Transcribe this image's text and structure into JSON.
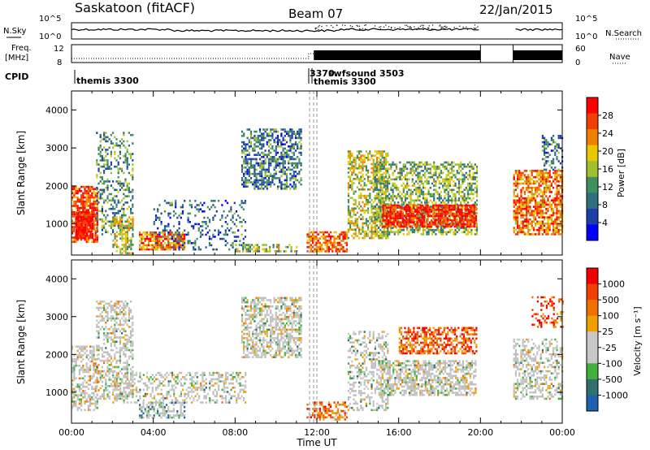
{
  "header": {
    "station": "Saskatoon (fitACF)",
    "beam": "Beam 07",
    "date": "22/Jan/2015"
  },
  "strip": {
    "nsky_label": "N.Sky",
    "nsearch_label": "N.Search",
    "nsky_ticks": [
      "10^5",
      "10^0"
    ],
    "nsearch_ticks": [
      "10^5",
      "10^0"
    ],
    "freq_label_line1": "Freq.",
    "freq_label_line2": "[MHz]",
    "freq_ticks": [
      "12",
      "8"
    ],
    "nave_label": "Nave",
    "nave_ticks": [
      "60",
      "0"
    ],
    "cpid_label": "CPID",
    "cpid_entries": [
      "themis 3300",
      "3370",
      "swfsound 3503",
      "themis 3300"
    ]
  },
  "colors": {
    "power_scale": [
      "#0000ff",
      "#1f3fa8",
      "#2f6f7f",
      "#3f8f5f",
      "#a0c030",
      "#e8c800",
      "#f08000",
      "#f04000",
      "#ff0000"
    ],
    "velocity_scale": [
      "#2030c0",
      "#2060b0",
      "#307070",
      "#40b040",
      "#c8c8c8",
      "#c8c8c8",
      "#f0a000",
      "#f07000",
      "#f04000",
      "#f00000"
    ],
    "gray_ground": "#bebebe"
  },
  "chart_data": [
    {
      "type": "heatmap",
      "panel": "power",
      "ylabel": "Slant Range [km]",
      "colorbar_label": "Power [dB]",
      "colorbar_ticks": [
        "28",
        "24",
        "20",
        "16",
        "12",
        "8",
        "4"
      ],
      "y_ticks": [
        "4000",
        "3000",
        "2000",
        "1000"
      ],
      "ylim": [
        180,
        4500
      ],
      "xlim": [
        0,
        24
      ],
      "blobs": [
        {
          "x0": 0.0,
          "x1": 1.3,
          "y0": 500,
          "y1": 2000,
          "level": 0.85,
          "density": 0.75
        },
        {
          "x0": 0.2,
          "x1": 1.0,
          "y0": 600,
          "y1": 1300,
          "level": 1.0,
          "density": 0.9
        },
        {
          "x0": 1.2,
          "x1": 3.0,
          "y0": 700,
          "y1": 3400,
          "level": 0.35,
          "density": 0.35
        },
        {
          "x0": 2.0,
          "x1": 3.0,
          "y0": 200,
          "y1": 1200,
          "level": 0.55,
          "density": 0.55
        },
        {
          "x0": 3.3,
          "x1": 5.5,
          "y0": 300,
          "y1": 800,
          "level": 0.75,
          "density": 0.75
        },
        {
          "x0": 4.0,
          "x1": 8.5,
          "y0": 300,
          "y1": 1600,
          "level": 0.25,
          "density": 0.2
        },
        {
          "x0": 8.3,
          "x1": 11.2,
          "y0": 1900,
          "y1": 3500,
          "level": 0.3,
          "density": 0.55
        },
        {
          "x0": 8.0,
          "x1": 11.0,
          "y0": 250,
          "y1": 450,
          "level": 0.5,
          "density": 0.45
        },
        {
          "x0": 11.5,
          "x1": 13.5,
          "y0": 250,
          "y1": 800,
          "level": 0.8,
          "density": 0.65
        },
        {
          "x0": 13.5,
          "x1": 15.5,
          "y0": 600,
          "y1": 2900,
          "level": 0.55,
          "density": 0.55
        },
        {
          "x0": 14.8,
          "x1": 19.8,
          "y0": 700,
          "y1": 2600,
          "level": 0.45,
          "density": 0.55
        },
        {
          "x0": 15.2,
          "x1": 19.8,
          "y0": 900,
          "y1": 1500,
          "level": 0.9,
          "density": 0.8
        },
        {
          "x0": 21.6,
          "x1": 24.0,
          "y0": 700,
          "y1": 2400,
          "level": 0.75,
          "density": 0.7
        },
        {
          "x0": 23.0,
          "x1": 24.0,
          "y0": 2400,
          "y1": 3300,
          "level": 0.3,
          "density": 0.4
        }
      ]
    },
    {
      "type": "heatmap",
      "panel": "velocity",
      "ylabel": "Slant Range [km]",
      "xlabel": "Time UT",
      "colorbar_label": "Velocity [m s⁻¹]",
      "colorbar_ticks": [
        "1000",
        "500",
        "100",
        "25",
        "-25",
        "-100",
        "-500",
        "-1000"
      ],
      "y_ticks": [
        "4000",
        "3000",
        "2000",
        "1000"
      ],
      "x_ticks": [
        "00:00",
        "04:00",
        "08:00",
        "12:00",
        "16:00",
        "20:00",
        "00:00"
      ],
      "ylim": [
        180,
        4500
      ],
      "xlim": [
        0,
        24
      ],
      "blobs": [
        {
          "x0": 0.0,
          "x1": 1.3,
          "y0": 500,
          "y1": 2200,
          "level": 0.55,
          "density": 0.5
        },
        {
          "x0": 1.2,
          "x1": 3.0,
          "y0": 800,
          "y1": 3400,
          "level": 0.5,
          "density": 0.4
        },
        {
          "x0": 2.0,
          "x1": 8.5,
          "y0": 700,
          "y1": 1500,
          "level": 0.5,
          "density": 0.4
        },
        {
          "x0": 3.3,
          "x1": 5.5,
          "y0": 300,
          "y1": 700,
          "level": 0.35,
          "density": 0.6
        },
        {
          "x0": 8.3,
          "x1": 11.2,
          "y0": 1900,
          "y1": 3500,
          "level": 0.5,
          "density": 0.55
        },
        {
          "x0": 11.5,
          "x1": 13.5,
          "y0": 250,
          "y1": 700,
          "level": 0.75,
          "density": 0.5
        },
        {
          "x0": 13.5,
          "x1": 15.5,
          "y0": 500,
          "y1": 2600,
          "level": 0.45,
          "density": 0.4
        },
        {
          "x0": 15.0,
          "x1": 19.8,
          "y0": 900,
          "y1": 1800,
          "level": 0.5,
          "density": 0.6
        },
        {
          "x0": 16.0,
          "x1": 19.8,
          "y0": 2000,
          "y1": 2700,
          "level": 0.8,
          "density": 0.6
        },
        {
          "x0": 21.6,
          "x1": 24.0,
          "y0": 800,
          "y1": 2400,
          "level": 0.5,
          "density": 0.45
        },
        {
          "x0": 22.5,
          "x1": 24.0,
          "y0": 2700,
          "y1": 3500,
          "level": 0.85,
          "density": 0.3
        }
      ]
    }
  ]
}
